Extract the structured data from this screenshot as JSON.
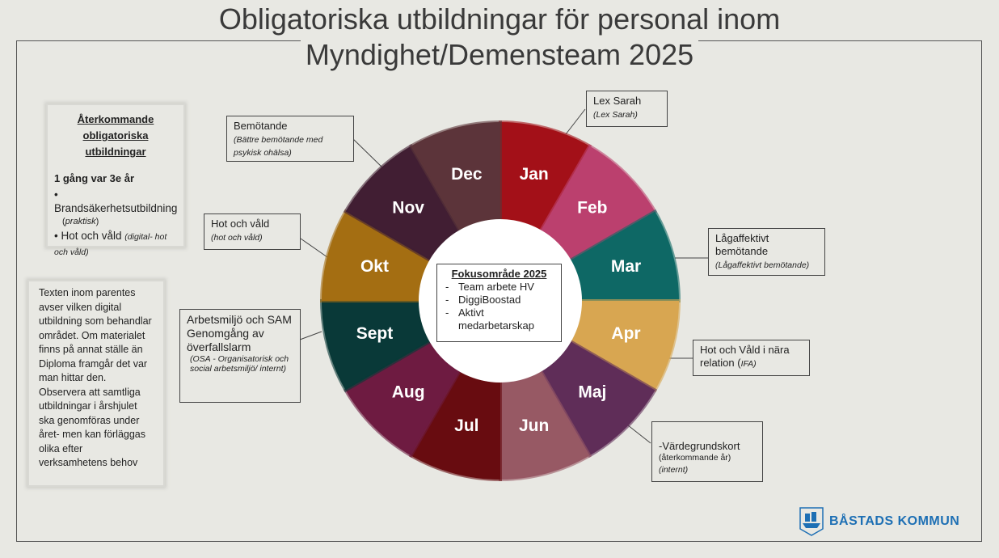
{
  "title": {
    "line1": "Obligatoriska utbildningar för personal inom",
    "line2": "Myndighet/Demensteam 2025"
  },
  "wheel": {
    "months": [
      {
        "label": "Jan",
        "color": "#b5121b"
      },
      {
        "label": "Feb",
        "color": "#d0477a"
      },
      {
        "label": "Mar",
        "color": "#0f7470"
      },
      {
        "label": "Apr",
        "color": "#f0b95a"
      },
      {
        "label": "Maj",
        "color": "#6a3262"
      },
      {
        "label": "Jun",
        "color": "#a8636f"
      },
      {
        "label": "Jul",
        "color": "#730d12"
      },
      {
        "label": "Aug",
        "color": "#7a1e48"
      },
      {
        "label": "Sept",
        "color": "#0a3f3e"
      },
      {
        "label": "Okt",
        "color": "#b67a14"
      },
      {
        "label": "Nov",
        "color": "#482139"
      },
      {
        "label": "Dec",
        "color": "#663a40"
      }
    ]
  },
  "focus": {
    "title": "Fokusområde 2025",
    "items": [
      "Team arbete HV",
      "DiggiBoostad",
      "Aktivt medarbetarskap"
    ]
  },
  "recurring": {
    "title1": "Återkommande",
    "title2": "obligatoriska utbildningar",
    "frequency": "1 gång var 3e år",
    "item1": "Brandsäkerhetsutbildning",
    "item1_note": "praktisk",
    "item2": "Hot och våld",
    "item2_note": "(digital- hot och våld)"
  },
  "note": "Texten inom parentes avser vilken digital utbildning som behandlar området. Om materialet finns på annat ställe än Diploma framgår det var man hittar den. Observera att samtliga utbildningar i årshjulet ska genomföras under året- men kan förläggas olika efter verksamhetens behov",
  "callouts": {
    "lex_sarah": {
      "main": "Lex Sarah",
      "sub": "(Lex Sarah)"
    },
    "bemotande": {
      "main": "Bemötande",
      "sub": "(Bättre bemötande med psykisk ohälsa)"
    },
    "hot_vald": {
      "main": "Hot och våld",
      "sub": "(hot och våld)"
    },
    "arbetsmiljo": {
      "main": "Arbetsmiljö och SAM Genomgång av överfallslarm",
      "sub": "(OSA - Organisatorisk och social arbetsmiljö/ internt)"
    },
    "lagaffektivt": {
      "main": "Lågaffektivt bemötande",
      "sub": "(Lågaffektivt bemötande)"
    },
    "hot_nara": {
      "main": "Hot och Våld i nära relation (",
      "sub": "IFA)"
    },
    "vardegrund": {
      "main": "-Värdegrundskort",
      "sub1": "(återkommande år)",
      "sub2": "(internt)"
    }
  },
  "logo": {
    "text": "BÅSTADS KOMMUN",
    "color": "#1d6fb4"
  }
}
